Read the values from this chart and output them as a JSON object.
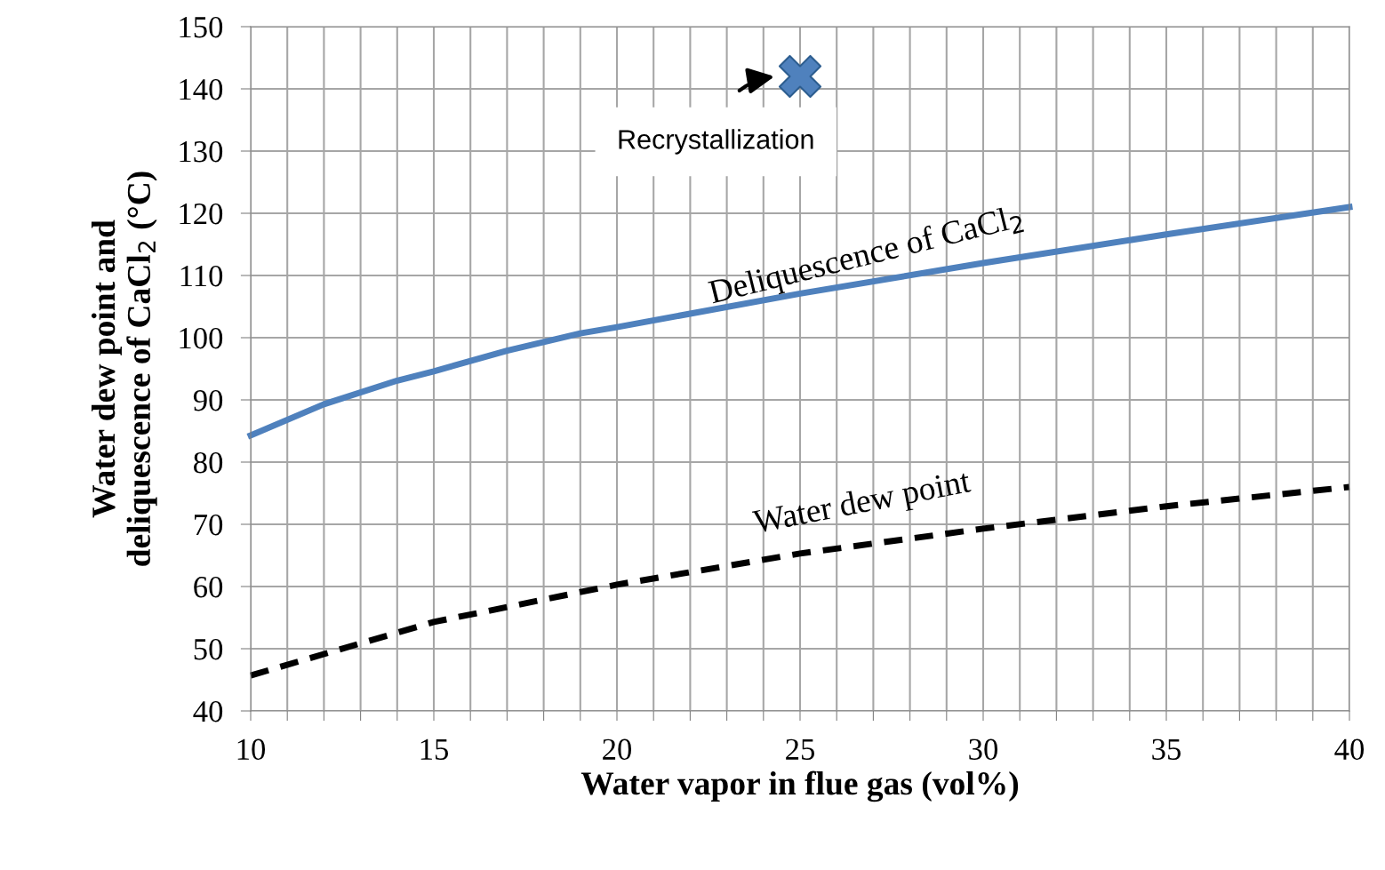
{
  "chart_data": {
    "type": "line",
    "xlabel": "Water vapor in flue gas (vol%)",
    "ylabel": "Water dew point and\ndeliquescence of CaCl$_{2}$ (°C)",
    "xlim": [
      10,
      40
    ],
    "ylim": [
      40,
      150
    ],
    "xticks": [
      10,
      {
        "value": 11,
        "label": null
      },
      {
        "value": 12,
        "label": null
      },
      {
        "value": 13,
        "label": null
      },
      {
        "value": 14,
        "label": null
      },
      15,
      {
        "value": 16,
        "label": null
      },
      {
        "value": 17,
        "label": null
      },
      {
        "value": 18,
        "label": null
      },
      {
        "value": 19,
        "label": null
      },
      20,
      {
        "value": 21,
        "label": null
      },
      {
        "value": 22,
        "label": null
      },
      {
        "value": 23,
        "label": null
      },
      {
        "value": 24,
        "label": null
      },
      25,
      {
        "value": 26,
        "label": null
      },
      {
        "value": 27,
        "label": null
      },
      {
        "value": 28,
        "label": null
      },
      {
        "value": 29,
        "label": null
      },
      30,
      {
        "value": 31,
        "label": null
      },
      {
        "value": 32,
        "label": null
      },
      {
        "value": 33,
        "label": null
      },
      {
        "value": 34,
        "label": null
      },
      35,
      {
        "value": 36,
        "label": null
      },
      {
        "value": 37,
        "label": null
      },
      {
        "value": 38,
        "label": null
      },
      {
        "value": 39,
        "label": null
      },
      40
    ],
    "yticks": [
      40,
      50,
      60,
      70,
      80,
      90,
      100,
      110,
      120,
      130,
      140,
      150
    ],
    "grid": true,
    "series": [
      {
        "name": "Deliquescence of CaCl$_{2}$",
        "color": "#4f81bd",
        "line_style": "solid",
        "x": [
          10,
          12,
          14,
          15,
          17,
          19,
          20,
          25,
          30,
          35,
          40
        ],
        "values": [
          84.3,
          89.3,
          93.1,
          94.6,
          97.9,
          100.7,
          101.7,
          107.1,
          112,
          116.6,
          121
        ]
      },
      {
        "name": "Water dew point",
        "color": "#000000",
        "line_style": "dashed",
        "x": [
          10,
          15,
          20,
          25,
          30,
          35,
          40
        ],
        "values": [
          45.7,
          54.3,
          60.3,
          65.3,
          69.3,
          72.9,
          76
        ]
      },
      {
        "type": "scatter",
        "color": "#4f81bd",
        "marker": "cross",
        "x": [
          25
        ],
        "values": [
          142
        ]
      }
    ],
    "annotations": [
      {
        "text": "Recrystallization",
        "x": 25,
        "y": 142
      }
    ]
  }
}
